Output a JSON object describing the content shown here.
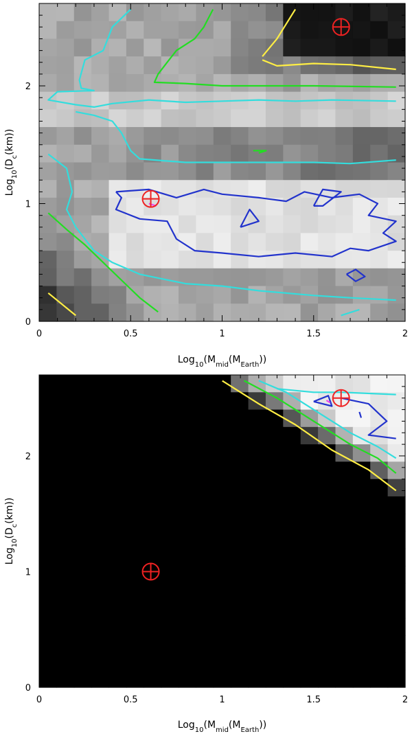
{
  "chart_data": [
    {
      "type": "heatmap",
      "title": "",
      "xlabel": {
        "base": "Log",
        "sub1": "10",
        "mid": "(M",
        "sub2": "mid",
        "mid2": "(M",
        "sub3": "Earth",
        "tail": "))"
      },
      "ylabel": {
        "base": "Log",
        "sub1": "10",
        "mid": "(D",
        "sub2": "c",
        "tail": "(km))"
      },
      "xlim": [
        0,
        2
      ],
      "ylim": [
        0,
        2.7
      ],
      "xticks": [
        "0",
        "0.5",
        "1",
        "1.5",
        "2"
      ],
      "yticks": [
        "0",
        "1",
        "2"
      ],
      "background": "grayscale map, light grey with bright band at y 0.4–1.1 and dark corner at upper right",
      "contours": [
        {
          "color": "#ffee44",
          "points": [
            [
              1.22,
              2.25
            ],
            [
              1.3,
              2.4
            ],
            [
              1.4,
              2.65
            ]
          ]
        },
        {
          "color": "#ffee44",
          "points": [
            [
              1.22,
              2.22
            ],
            [
              1.3,
              2.17
            ],
            [
              1.5,
              2.19
            ],
            [
              1.7,
              2.18
            ],
            [
              1.95,
              2.14
            ]
          ]
        },
        {
          "color": "#ffee44",
          "points": [
            [
              0.05,
              0.24
            ],
            [
              0.2,
              0.05
            ]
          ]
        },
        {
          "color": "#22dd22",
          "points": [
            [
              0.95,
              2.65
            ],
            [
              0.9,
              2.5
            ],
            [
              0.85,
              2.4
            ],
            [
              0.75,
              2.3
            ],
            [
              0.7,
              2.2
            ],
            [
              0.65,
              2.1
            ],
            [
              0.63,
              2.03
            ],
            [
              0.8,
              2.02
            ],
            [
              1.0,
              2.0
            ],
            [
              1.5,
              2.0
            ],
            [
              1.95,
              1.99
            ]
          ]
        },
        {
          "color": "#22dd22",
          "points": [
            [
              0.05,
              0.92
            ],
            [
              0.15,
              0.78
            ],
            [
              0.25,
              0.65
            ],
            [
              0.35,
              0.5
            ],
            [
              0.45,
              0.35
            ],
            [
              0.55,
              0.2
            ],
            [
              0.65,
              0.08
            ]
          ]
        },
        {
          "color": "#22dd22",
          "points": [
            [
              1.17,
              1.45
            ],
            [
              1.24,
              1.45
            ],
            [
              1.2,
              1.43
            ]
          ]
        },
        {
          "color": "#33dddd",
          "points": [
            [
              0.5,
              2.65
            ],
            [
              0.4,
              2.5
            ],
            [
              0.35,
              2.3
            ],
            [
              0.25,
              2.22
            ],
            [
              0.22,
              2.05
            ],
            [
              0.23,
              1.98
            ],
            [
              0.3,
              1.96
            ],
            [
              0.1,
              1.95
            ],
            [
              0.05,
              1.88
            ],
            [
              0.2,
              1.84
            ],
            [
              0.3,
              1.82
            ],
            [
              0.4,
              1.85
            ],
            [
              0.6,
              1.88
            ],
            [
              0.8,
              1.86
            ],
            [
              1.0,
              1.87
            ],
            [
              1.2,
              1.88
            ],
            [
              1.4,
              1.87
            ],
            [
              1.6,
              1.88
            ],
            [
              1.95,
              1.87
            ]
          ]
        },
        {
          "color": "#33dddd",
          "points": [
            [
              0.2,
              1.78
            ],
            [
              0.3,
              1.75
            ],
            [
              0.4,
              1.7
            ],
            [
              0.45,
              1.6
            ],
            [
              0.5,
              1.45
            ],
            [
              0.55,
              1.38
            ],
            [
              0.8,
              1.35
            ],
            [
              1.0,
              1.35
            ],
            [
              1.2,
              1.35
            ],
            [
              1.5,
              1.35
            ],
            [
              1.7,
              1.34
            ],
            [
              1.95,
              1.37
            ]
          ]
        },
        {
          "color": "#33dddd",
          "points": [
            [
              0.05,
              1.42
            ],
            [
              0.15,
              1.3
            ],
            [
              0.18,
              1.1
            ],
            [
              0.15,
              0.95
            ],
            [
              0.2,
              0.8
            ],
            [
              0.3,
              0.6
            ],
            [
              0.4,
              0.5
            ],
            [
              0.55,
              0.4
            ],
            [
              0.8,
              0.32
            ],
            [
              1.0,
              0.3
            ],
            [
              1.2,
              0.26
            ],
            [
              1.5,
              0.22
            ],
            [
              1.7,
              0.2
            ],
            [
              1.95,
              0.18
            ]
          ]
        },
        {
          "color": "#33dddd",
          "points": [
            [
              1.65,
              0.05
            ],
            [
              1.75,
              0.1
            ]
          ]
        },
        {
          "color": "#2233cc",
          "points": [
            [
              0.42,
              1.1
            ],
            [
              0.6,
              1.12
            ],
            [
              0.75,
              1.05
            ],
            [
              0.9,
              1.12
            ],
            [
              1.0,
              1.08
            ],
            [
              1.2,
              1.05
            ],
            [
              1.35,
              1.02
            ],
            [
              1.45,
              1.1
            ],
            [
              1.6,
              1.05
            ],
            [
              1.75,
              1.08
            ],
            [
              1.85,
              1.0
            ],
            [
              1.8,
              0.9
            ],
            [
              1.95,
              0.85
            ],
            [
              1.88,
              0.75
            ],
            [
              1.95,
              0.68
            ],
            [
              1.8,
              0.6
            ],
            [
              1.7,
              0.62
            ],
            [
              1.6,
              0.55
            ],
            [
              1.4,
              0.58
            ],
            [
              1.2,
              0.55
            ],
            [
              1.0,
              0.58
            ],
            [
              0.85,
              0.6
            ],
            [
              0.75,
              0.7
            ],
            [
              0.7,
              0.85
            ],
            [
              0.55,
              0.87
            ],
            [
              0.42,
              0.95
            ],
            [
              0.45,
              1.05
            ],
            [
              0.42,
              1.1
            ]
          ]
        },
        {
          "color": "#2233cc",
          "points": [
            [
              1.1,
              0.8
            ],
            [
              1.15,
              0.95
            ],
            [
              1.2,
              0.85
            ],
            [
              1.1,
              0.8
            ]
          ]
        },
        {
          "color": "#2233cc",
          "points": [
            [
              1.5,
              0.98
            ],
            [
              1.55,
              1.12
            ],
            [
              1.65,
              1.1
            ],
            [
              1.55,
              0.98
            ],
            [
              1.5,
              0.98
            ]
          ]
        },
        {
          "color": "#2233cc",
          "points": [
            [
              1.68,
              0.4
            ],
            [
              1.73,
              0.44
            ],
            [
              1.78,
              0.38
            ],
            [
              1.73,
              0.34
            ],
            [
              1.68,
              0.4
            ]
          ]
        },
        {
          "color": "#ee44ee",
          "points": [
            [
              0.6,
              1.0
            ],
            [
              0.64,
              0.98
            ]
          ]
        }
      ],
      "markers": [
        {
          "symbol": "circled-plus",
          "color": "#ee2222",
          "x": 1.65,
          "y": 2.5
        },
        {
          "symbol": "circled-plus",
          "color": "#ee2222",
          "x": 0.61,
          "y": 1.04
        }
      ]
    },
    {
      "type": "heatmap",
      "title": "",
      "xlabel": {
        "base": "Log",
        "sub1": "10",
        "mid": "(M",
        "sub2": "mid",
        "mid2": "(M",
        "sub3": "Earth",
        "tail": "))"
      },
      "ylabel": {
        "base": "Log",
        "sub1": "10",
        "mid": "(D",
        "sub2": "c",
        "tail": "(km))"
      },
      "xlim": [
        0,
        2
      ],
      "ylim": [
        0,
        2.7
      ],
      "xticks": [
        "0",
        "0.5",
        "1",
        "1.5",
        "2"
      ],
      "yticks": [
        "0",
        "1",
        "2"
      ],
      "background": "mostly black, light region only in upper-right corner",
      "contours": [
        {
          "color": "#ffee44",
          "points": [
            [
              1.0,
              2.65
            ],
            [
              1.2,
              2.45
            ],
            [
              1.4,
              2.27
            ],
            [
              1.6,
              2.05
            ],
            [
              1.8,
              1.88
            ],
            [
              1.95,
              1.7
            ]
          ]
        },
        {
          "color": "#22dd22",
          "points": [
            [
              1.12,
              2.65
            ],
            [
              1.3,
              2.5
            ],
            [
              1.5,
              2.3
            ],
            [
              1.7,
              2.1
            ],
            [
              1.85,
              1.98
            ],
            [
              1.95,
              1.85
            ]
          ]
        },
        {
          "color": "#33dddd",
          "points": [
            [
              1.2,
              2.65
            ],
            [
              1.35,
              2.55
            ],
            [
              1.5,
              2.4
            ],
            [
              1.7,
              2.2
            ],
            [
              1.85,
              2.08
            ],
            [
              1.95,
              1.98
            ]
          ]
        },
        {
          "color": "#33dddd",
          "points": [
            [
              1.3,
              2.58
            ],
            [
              1.5,
              2.55
            ],
            [
              1.65,
              2.55
            ],
            [
              1.95,
              2.53
            ]
          ]
        },
        {
          "color": "#2233cc",
          "points": [
            [
              1.5,
              2.47
            ],
            [
              1.58,
              2.52
            ],
            [
              1.6,
              2.43
            ],
            [
              1.5,
              2.47
            ]
          ]
        },
        {
          "color": "#2233cc",
          "points": [
            [
              1.65,
              2.5
            ],
            [
              1.8,
              2.45
            ],
            [
              1.9,
              2.3
            ],
            [
              1.8,
              2.18
            ],
            [
              1.95,
              2.15
            ]
          ]
        },
        {
          "color": "#2233cc",
          "points": [
            [
              1.75,
              2.38
            ],
            [
              1.76,
              2.33
            ]
          ]
        },
        {
          "color": "#ee44ee",
          "points": [
            [
              1.57,
              2.48
            ],
            [
              1.59,
              2.46
            ]
          ]
        }
      ],
      "markers": [
        {
          "symbol": "circled-plus",
          "color": "#ee2222",
          "x": 1.65,
          "y": 2.5
        },
        {
          "symbol": "circled-plus",
          "color": "#ee2222",
          "x": 0.61,
          "y": 1.0
        }
      ]
    }
  ]
}
